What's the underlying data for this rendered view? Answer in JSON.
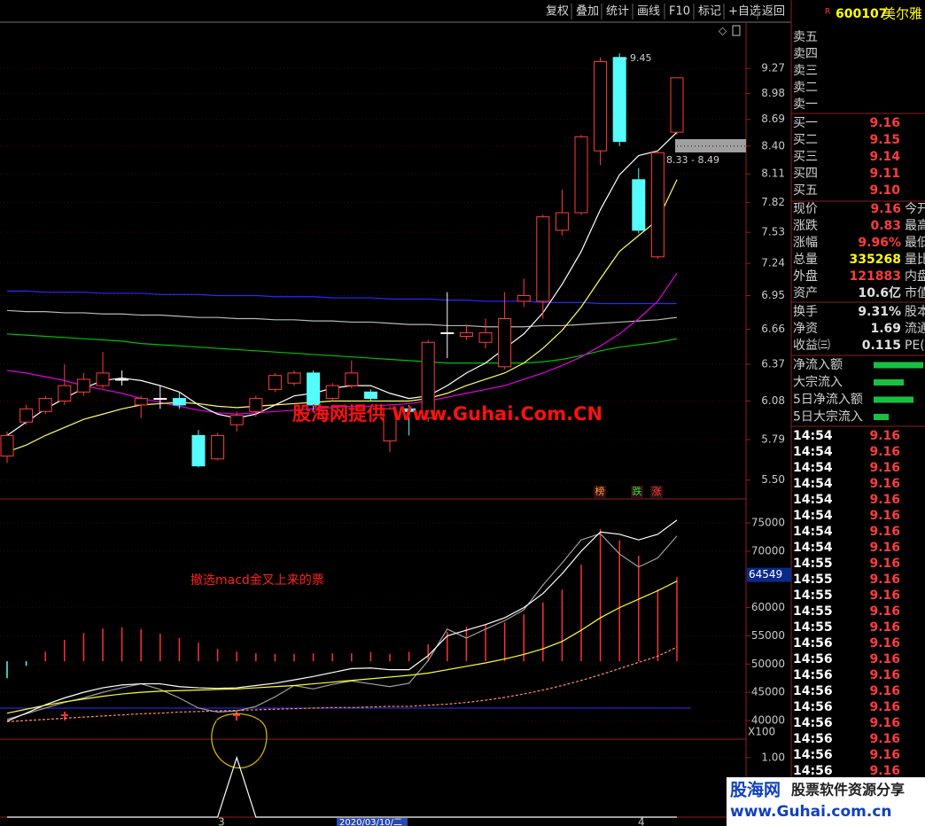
{
  "toolbar": [
    "复权",
    "叠加",
    "统计",
    "画线",
    "F10",
    "标记",
    "+自选",
    "返回"
  ],
  "stock": {
    "flag": "R",
    "code": "600107",
    "name": "美尔雅"
  },
  "order_book": {
    "sell": [
      "卖五",
      "卖四",
      "卖三",
      "卖二",
      "卖一"
    ],
    "buy": [
      {
        "label": "买一",
        "price": "9.16"
      },
      {
        "label": "买二",
        "price": "9.15"
      },
      {
        "label": "买三",
        "price": "9.14"
      },
      {
        "label": "买四",
        "price": "9.11"
      },
      {
        "label": "买五",
        "price": "9.10"
      }
    ]
  },
  "quote": [
    {
      "label": "现价",
      "value": "9.16",
      "color": "#ff3c3c",
      "label2": "今开"
    },
    {
      "label": "涨跌",
      "value": "0.83",
      "color": "#ff3c3c",
      "label2": "最高"
    },
    {
      "label": "涨幅",
      "value": "9.96%",
      "color": "#ff3c3c",
      "label2": "最低"
    },
    {
      "label": "总量",
      "value": "335268",
      "color": "#ffff00",
      "label2": "量比"
    },
    {
      "label": "外盘",
      "value": "121883",
      "color": "#ff3c3c",
      "label2": "内盘"
    },
    {
      "label": "资产",
      "value": "10.6亿",
      "color": "#e0e0e0",
      "label2": "市值"
    },
    {
      "label": "换手",
      "value": "9.31%",
      "color": "#e0e0e0",
      "label2": "股本"
    },
    {
      "label": "净资",
      "value": "1.69",
      "color": "#e0e0e0",
      "label2": "流通"
    },
    {
      "label": "收益㈢",
      "value": "0.115",
      "color": "#e0e0e0",
      "label2": "PE(动)"
    }
  ],
  "flows": [
    "净流入额",
    "大宗流入",
    "5日净流入额",
    "5日大宗流入"
  ],
  "trades": [
    {
      "time": "14:54",
      "price": "9.16"
    },
    {
      "time": "14:54",
      "price": "9.16"
    },
    {
      "time": "14:54",
      "price": "9.16"
    },
    {
      "time": "14:54",
      "price": "9.16"
    },
    {
      "time": "14:54",
      "price": "9.16"
    },
    {
      "time": "14:54",
      "price": "9.16"
    },
    {
      "time": "14:54",
      "price": "9.16"
    },
    {
      "time": "14:54",
      "price": "9.16"
    },
    {
      "time": "14:55",
      "price": "9.16"
    },
    {
      "time": "14:55",
      "price": "9.16"
    },
    {
      "time": "14:55",
      "price": "9.16"
    },
    {
      "time": "14:55",
      "price": "9.16"
    },
    {
      "time": "14:55",
      "price": "9.16"
    },
    {
      "time": "14:56",
      "price": "9.16"
    },
    {
      "time": "14:56",
      "price": "9.16"
    },
    {
      "time": "14:56",
      "price": "9.16"
    },
    {
      "time": "14:56",
      "price": "9.16"
    },
    {
      "time": "14:56",
      "price": "9.16"
    },
    {
      "time": "14:56",
      "price": "9.16"
    },
    {
      "time": "14:56",
      "price": "9.16"
    },
    {
      "time": "14:56",
      "price": "9.16"
    },
    {
      "time": "14:56",
      "price": "9.16"
    }
  ],
  "date_labels": [
    "3",
    "2020/03/10/二",
    "4"
  ],
  "banner": {
    "brand": "股海网",
    "slogan": "股票软件资源分享",
    "url": "www.Guhai.com.cn"
  },
  "chart_data": [
    {
      "type": "candlestick",
      "log_scale": true,
      "ylim": [
        5.37,
        9.83
      ],
      "yticks": [
        9.27,
        8.98,
        8.69,
        {
          "value": 8.4,
          "label": "8.40"
        },
        8.11,
        7.82,
        7.53,
        7.24,
        6.95,
        6.66,
        6.37,
        6.08,
        5.79,
        {
          "value": 5.5,
          "label": "5.50"
        }
      ],
      "up_color": "#ff3c3c",
      "down_color": "#54fcfc",
      "flat_color": "#ffffff",
      "open": [
        5.67,
        5.92,
        6.0,
        6.08,
        6.15,
        6.2,
        6.25,
        6.05,
        6.1,
        6.1,
        5.82,
        5.65,
        5.9,
        6.0,
        6.17,
        6.22,
        6.3,
        6.1,
        6.2,
        6.15,
        5.78,
        6.02,
        5.95,
        6.63,
        6.6,
        6.55,
        6.35,
        6.9,
        6.9,
        7.55,
        7.72,
        8.35,
        9.4,
        8.05,
        7.3,
        8.55
      ],
      "high": [
        5.85,
        6.05,
        6.12,
        6.37,
        6.3,
        6.47,
        6.32,
        6.12,
        6.2,
        6.15,
        5.86,
        5.84,
        6.0,
        6.12,
        6.3,
        6.32,
        6.32,
        6.22,
        6.4,
        6.17,
        6.04,
        6.05,
        6.57,
        6.98,
        6.7,
        6.75,
        6.98,
        7.1,
        7.7,
        7.95,
        8.52,
        9.4,
        9.45,
        8.17,
        8.35,
        9.16
      ],
      "low": [
        5.62,
        5.9,
        5.98,
        6.05,
        6.12,
        6.18,
        6.2,
        5.95,
        6.02,
        6.02,
        5.59,
        5.64,
        5.85,
        5.96,
        6.15,
        6.2,
        6.0,
        6.08,
        6.18,
        6.08,
        5.7,
        5.82,
        5.92,
        6.42,
        6.57,
        6.5,
        6.33,
        6.85,
        6.75,
        7.5,
        7.7,
        8.2,
        8.4,
        7.52,
        7.28,
        8.52
      ],
      "close": [
        5.82,
        6.02,
        6.1,
        6.2,
        6.25,
        6.3,
        6.25,
        6.1,
        6.1,
        6.05,
        5.6,
        5.82,
        5.97,
        6.1,
        6.28,
        6.3,
        6.05,
        6.2,
        6.3,
        6.1,
        6.02,
        6.0,
        6.55,
        6.63,
        6.63,
        6.63,
        6.75,
        6.95,
        7.68,
        7.72,
        8.5,
        9.35,
        8.45,
        7.55,
        8.33,
        9.16
      ],
      "lines": [
        {
          "color": "#2828ff",
          "values": [
            6.99,
            6.99,
            6.98,
            6.98,
            6.98,
            6.97,
            6.97,
            6.97,
            6.96,
            6.96,
            6.96,
            6.95,
            6.95,
            6.95,
            6.94,
            6.94,
            6.94,
            6.93,
            6.93,
            6.93,
            6.92,
            6.92,
            6.92,
            6.91,
            6.91,
            6.9,
            6.9,
            6.9,
            6.89,
            6.89,
            6.89,
            6.88,
            6.88,
            6.88,
            6.88,
            6.88
          ]
        },
        {
          "color": "#b8b8b8",
          "values": [
            6.82,
            6.81,
            6.81,
            6.8,
            6.8,
            6.79,
            6.79,
            6.78,
            6.78,
            6.77,
            6.76,
            6.76,
            6.75,
            6.75,
            6.74,
            6.74,
            6.73,
            6.73,
            6.72,
            6.72,
            6.71,
            6.7,
            6.7,
            6.69,
            6.69,
            6.68,
            6.68,
            6.68,
            6.69,
            6.69,
            6.7,
            6.71,
            6.72,
            6.73,
            6.74,
            6.76
          ]
        },
        {
          "color": "#00c000",
          "values": [
            6.62,
            6.61,
            6.6,
            6.59,
            6.58,
            6.57,
            6.56,
            6.54,
            6.53,
            6.52,
            6.51,
            6.5,
            6.49,
            6.48,
            6.47,
            6.46,
            6.45,
            6.44,
            6.43,
            6.42,
            6.41,
            6.4,
            6.39,
            6.38,
            6.38,
            6.38,
            6.38,
            6.38,
            6.39,
            6.41,
            6.44,
            6.48,
            6.51,
            6.53,
            6.55,
            6.58
          ]
        },
        {
          "color": "#e000e0",
          "values": [
            6.32,
            6.3,
            6.27,
            6.24,
            6.2,
            6.17,
            6.14,
            6.1,
            6.07,
            6.04,
            6.01,
            5.99,
            5.98,
            5.99,
            6.0,
            6.01,
            6.02,
            6.03,
            6.04,
            6.04,
            6.05,
            6.06,
            6.08,
            6.11,
            6.14,
            6.17,
            6.2,
            6.25,
            6.3,
            6.36,
            6.43,
            6.52,
            6.62,
            6.75,
            6.9,
            7.15
          ]
        },
        {
          "color": "#ffff66",
          "values": [
            5.7,
            5.75,
            5.82,
            5.88,
            5.94,
            5.98,
            6.02,
            6.05,
            6.06,
            6.07,
            6.06,
            6.04,
            6.03,
            6.04,
            6.05,
            6.06,
            6.07,
            6.08,
            6.08,
            6.08,
            6.08,
            6.08,
            6.1,
            6.14,
            6.2,
            6.25,
            6.3,
            6.38,
            6.5,
            6.65,
            6.85,
            7.1,
            7.35,
            7.5,
            7.65,
            8.05
          ]
        },
        {
          "color": "#ffffff",
          "values": [
            5.82,
            5.92,
            6.02,
            6.1,
            6.18,
            6.24,
            6.26,
            6.24,
            6.2,
            6.15,
            6.05,
            5.98,
            5.95,
            5.98,
            6.05,
            6.12,
            6.14,
            6.18,
            6.2,
            6.2,
            6.14,
            6.1,
            6.12,
            6.2,
            6.3,
            6.38,
            6.5,
            6.62,
            6.8,
            7.05,
            7.35,
            7.75,
            8.1,
            8.3,
            8.35,
            8.55
          ]
        }
      ],
      "high_label": "9.45",
      "range_label": "8.33 - 8.49",
      "watermark": "股海网提供 Www.Guhai.Com.CN",
      "markers": [
        {
          "text": "榜",
          "color": "#ff9933"
        },
        {
          "text": "跌",
          "color": "#33dd33"
        },
        {
          "text": "涨",
          "color": "#ff3c3c"
        }
      ]
    },
    {
      "type": "line",
      "ylim": [
        36700,
        79250
      ],
      "yticks": [
        75000,
        70000,
        60000,
        55000,
        50000,
        45000,
        40000
      ],
      "hist_base": 50500,
      "up_color": "#ff3030",
      "down_color": "#54fcfc",
      "histogram": [
        47500,
        49700,
        52200,
        54300,
        55500,
        56300,
        56500,
        56200,
        55400,
        54600,
        53800,
        52700,
        52200,
        51900,
        51800,
        51800,
        51900,
        51900,
        51900,
        52100,
        51800,
        52200,
        53500,
        55700,
        56600,
        57000,
        57400,
        58800,
        60900,
        63200,
        67600,
        73900,
        71900,
        69200,
        63200,
        65400
      ],
      "lines": [
        {
          "color": "#a0a0a0",
          "values": [
            40200,
            41200,
            42200,
            43200,
            44000,
            45000,
            45800,
            46500,
            45500,
            44000,
            42200,
            41500,
            41700,
            42500,
            44200,
            46200,
            45600,
            46400,
            47000,
            46500,
            46000,
            46600,
            50600,
            56200,
            54600,
            56200,
            57700,
            59600,
            64000,
            67900,
            72000,
            73100,
            69500,
            67200,
            68800,
            72700
          ]
        },
        {
          "color": "#ffffff",
          "values": [
            39900,
            41300,
            42800,
            44000,
            45000,
            45800,
            46300,
            46500,
            46500,
            46000,
            45800,
            45700,
            45800,
            46200,
            46600,
            47200,
            47800,
            48500,
            49200,
            49300,
            49000,
            49000,
            51500,
            55000,
            56000,
            57000,
            58200,
            60000,
            62500,
            66000,
            70000,
            73400,
            73000,
            72000,
            73000,
            75500
          ]
        },
        {
          "color": "#ffff33",
          "values": [
            41300,
            42000,
            42700,
            43300,
            43800,
            44300,
            44700,
            45000,
            45200,
            45300,
            45400,
            45500,
            45600,
            45800,
            46000,
            46200,
            46500,
            46800,
            47100,
            47400,
            47700,
            48000,
            48400,
            49000,
            49600,
            50200,
            50900,
            51700,
            52700,
            54000,
            56000,
            58200,
            60000,
            61500,
            63000,
            64700
          ]
        },
        {
          "color": "#ff8a70",
          "dash": true,
          "values": [
            39800,
            40000,
            40200,
            40400,
            40600,
            40800,
            41000,
            41200,
            41300,
            41500,
            41600,
            41700,
            41800,
            41900,
            42000,
            42100,
            42200,
            42300,
            42300,
            42400,
            42500,
            42500,
            42700,
            42900,
            43200,
            43600,
            44100,
            44700,
            45400,
            46200,
            47100,
            48100,
            49200,
            50300,
            51400,
            53000
          ]
        }
      ],
      "level": 42200,
      "level_color": "#3030ff",
      "cursor": 64549,
      "scale_label": "X100",
      "annotation": "撤选macd金叉上来的票"
    },
    {
      "type": "line",
      "ylim": [
        0,
        1.31
      ],
      "yticks": [
        {
          "value": 1,
          "label": "1.00"
        }
      ],
      "color": "#ffffff",
      "values": [
        0,
        0,
        0,
        0,
        0,
        0,
        0,
        0,
        0,
        0,
        0,
        0,
        1,
        0,
        0,
        0,
        0,
        0,
        0,
        0,
        0,
        0,
        0,
        0,
        0,
        0,
        0,
        0,
        0,
        0,
        0,
        0,
        0,
        0,
        0,
        0
      ]
    }
  ]
}
